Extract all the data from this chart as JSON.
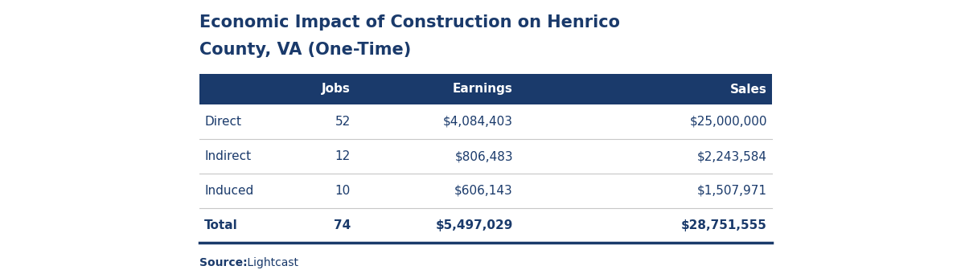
{
  "title_line1": "Economic Impact of Construction on Henrico",
  "title_line2": "County, VA (One-Time)",
  "title_color": "#1a3a6b",
  "header_bg": "#1a3a6b",
  "header_text_color": "#ffffff",
  "rows": [
    {
      "label": "Direct",
      "jobs": "52",
      "earnings": "$4,084,403",
      "sales": "$25,000,000",
      "bold": false
    },
    {
      "label": "Indirect",
      "jobs": "12",
      "earnings": "$806,483",
      "sales": "$2,243,584",
      "bold": false
    },
    {
      "label": "Induced",
      "jobs": "10",
      "earnings": "$606,143",
      "sales": "$1,507,971",
      "bold": false
    },
    {
      "label": "Total",
      "jobs": "74",
      "earnings": "$5,497,029",
      "sales": "$28,751,555",
      "bold": true
    }
  ],
  "source_bold": "Source:",
  "source_normal": " Lightcast",
  "bg_color": "#ffffff",
  "divider_color": "#1a3a6b",
  "row_divider_color": "#c8c8c8",
  "title_fontsize": 15,
  "header_fontsize": 11,
  "body_fontsize": 11
}
